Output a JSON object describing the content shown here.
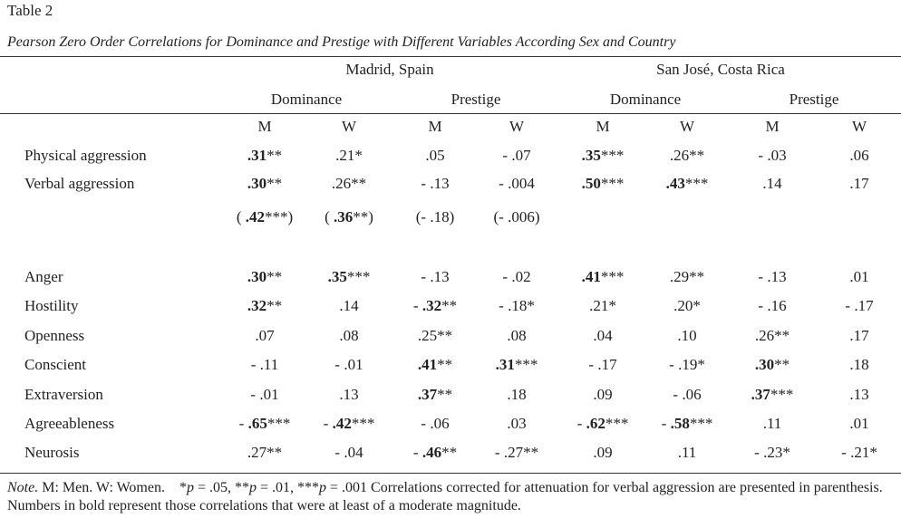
{
  "header": {
    "label": "Table 2",
    "title": "Pearson Zero Order Correlations for Dominance and Prestige with Different Variables According Sex and Country"
  },
  "table": {
    "countries": [
      "Madrid, Spain",
      "San José, Costa Rica"
    ],
    "groups": [
      "Dominance",
      "Prestige",
      "Dominance",
      "Prestige"
    ],
    "sexes": [
      "M",
      "W",
      "M",
      "W",
      "M",
      "W",
      "M",
      "W"
    ],
    "rows": [
      {
        "label": "Physical aggression",
        "cells": [
          {
            "bold": ".31",
            "post": "**"
          },
          ".21*",
          ".05",
          "- .07",
          {
            "bold": ".35",
            "post": "***"
          },
          ".26**",
          "- .03",
          ".06"
        ]
      },
      {
        "label": "Verbal aggression",
        "cells": [
          {
            "bold": ".30",
            "post": "**"
          },
          ".26**",
          "- .13",
          "- .004",
          {
            "bold": ".50",
            "post": "***"
          },
          {
            "bold": ".43",
            "post": "***"
          },
          ".14",
          ".17"
        ]
      },
      {
        "cells": [
          {
            "pre": "( ",
            "bold": ".42",
            "post": "***)"
          },
          {
            "pre": "( ",
            "bold": ".36",
            "post": "**)"
          },
          "(- .18)",
          "(- .006)"
        ]
      },
      {
        "label": "Anger",
        "cells": [
          {
            "bold": ".30",
            "post": "**"
          },
          {
            "bold": ".35",
            "post": "***"
          },
          "- .13",
          "- .02",
          {
            "bold": ".41",
            "post": "***"
          },
          ".29**",
          "- .13",
          ".01"
        ]
      },
      {
        "label": "Hostility",
        "cells": [
          {
            "bold": ".32",
            "post": "**"
          },
          ".14",
          {
            "pre": "- ",
            "bold": ".32",
            "post": "**"
          },
          "- .18*",
          ".21*",
          ".20*",
          "- .16",
          "- .17"
        ]
      },
      {
        "label": "Openness",
        "cells": [
          ".07",
          ".08",
          ".25**",
          ".08",
          ".04",
          ".10",
          ".26**",
          ".17"
        ]
      },
      {
        "label": "Conscient",
        "cells": [
          "- .11",
          "- .01",
          {
            "bold": ".41",
            "post": "**"
          },
          {
            "bold": ".31",
            "post": "***"
          },
          "- .17",
          "- .19*",
          {
            "bold": ".30",
            "post": "**"
          },
          ".18"
        ]
      },
      {
        "label": "Extraversion",
        "cells": [
          "- .01",
          ".13",
          {
            "bold": ".37",
            "post": "**"
          },
          ".18",
          ".09",
          "- .06",
          {
            "bold": ".37",
            "post": "***"
          },
          ".13"
        ]
      },
      {
        "label": "Agreeableness",
        "cells": [
          {
            "pre": "- ",
            "bold": ".65",
            "post": "***"
          },
          {
            "pre": "- ",
            "bold": ".42",
            "post": "***"
          },
          "- .06",
          ".03",
          {
            "pre": "- ",
            "bold": ".62",
            "post": "***"
          },
          {
            "pre": "- ",
            "bold": ".58",
            "post": "***"
          },
          ".11",
          ".01"
        ]
      },
      {
        "label": "Neurosis",
        "cells": [
          ".27**",
          "- .04",
          {
            "pre": "- ",
            "bold": ".46",
            "post": "**"
          },
          "- .27**",
          ".09",
          ".11",
          "- .23*",
          "- .21*"
        ]
      }
    ]
  },
  "note": [
    {
      "text": "Note.",
      "italic": true
    },
    {
      "text": " M: Men. W: Women.    *",
      "italic": false
    },
    {
      "text": "p",
      "italic": true
    },
    {
      "text": " = .05, **",
      "italic": false
    },
    {
      "text": "p",
      "italic": true
    },
    {
      "text": " = .01, ***",
      "italic": false
    },
    {
      "text": "p",
      "italic": true
    },
    {
      "text": " = .001 Correlations corrected for attenuation for verbal aggression are presented in parenthesis. Numbers in bold represent those correlations that were at least of a moderate magnitude.",
      "italic": false
    }
  ]
}
